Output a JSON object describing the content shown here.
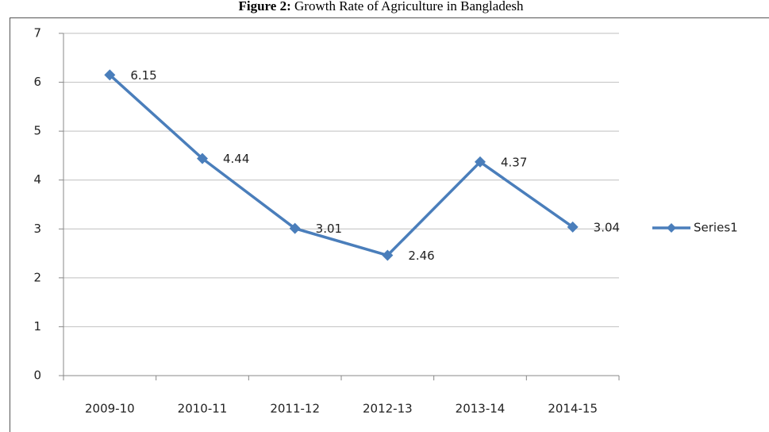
{
  "chart_data": {
    "type": "line",
    "figure_label": "Figure 2:",
    "title": "Growth Rate of Agriculture in Bangladesh",
    "categories": [
      "2009-10",
      "2010-11",
      "2011-12",
      "2012-13",
      "2013-14",
      "2014-15"
    ],
    "series": [
      {
        "name": "Series1",
        "color": "#4a7ebb",
        "values": [
          6.15,
          4.44,
          3.01,
          2.46,
          4.37,
          3.04
        ]
      }
    ],
    "ylim": [
      0,
      7
    ],
    "yticks": [
      0,
      1,
      2,
      3,
      4,
      5,
      6,
      7
    ],
    "grid": true,
    "legend": "right"
  }
}
